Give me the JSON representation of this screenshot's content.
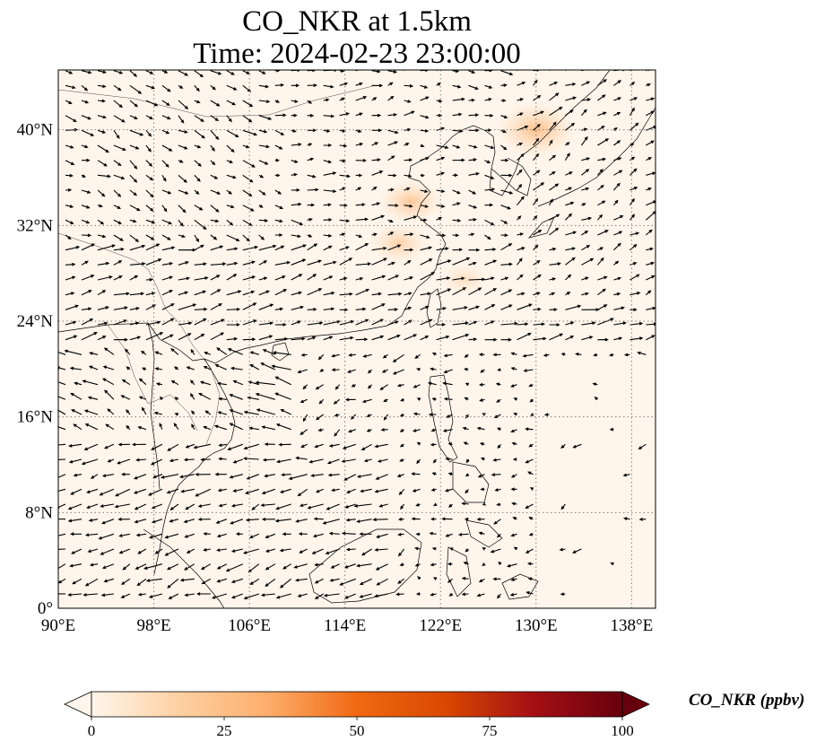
{
  "title": {
    "line1": "CO_NKR at 1.5km",
    "line2": "Time: 2024-02-23 23:00:00"
  },
  "map": {
    "projection": "PlateCarree",
    "lon_range": [
      90,
      140
    ],
    "lat_range": [
      0,
      45
    ],
    "gridlines": "dotted gray",
    "lon_ticks": [
      {
        "value": 90,
        "label": "90°E"
      },
      {
        "value": 98,
        "label": "98°E"
      },
      {
        "value": 106,
        "label": "106°E"
      },
      {
        "value": 114,
        "label": "114°E"
      },
      {
        "value": 122,
        "label": "122°E"
      },
      {
        "value": 130,
        "label": "130°E"
      },
      {
        "value": 138,
        "label": "138°E"
      }
    ],
    "lat_ticks": [
      {
        "value": 0,
        "label": "0°"
      },
      {
        "value": 8,
        "label": "8°N"
      },
      {
        "value": 16,
        "label": "16°N"
      },
      {
        "value": 24,
        "label": "24°N"
      },
      {
        "value": 32,
        "label": "32°N"
      },
      {
        "value": 40,
        "label": "40°N"
      }
    ],
    "field": "CO_NKR",
    "overlay": "wind vectors (black arrows)",
    "background_color": "#fff5eb",
    "concentration_patches": [
      {
        "lon": 119.5,
        "lat": 34.0,
        "value": 12
      },
      {
        "lon": 118.5,
        "lat": 30.5,
        "value": 10
      },
      {
        "lon": 130.0,
        "lat": 40.0,
        "value": 18
      },
      {
        "lon": 124.0,
        "lat": 27.5,
        "value": 6
      }
    ]
  },
  "colorbar": {
    "label": "CO_NKR (ppbv)",
    "cmap": "OrRd",
    "extend": "both",
    "range": [
      0,
      100
    ],
    "colors": [
      "#fff5eb",
      "#fdd0a2",
      "#fdae6b",
      "#f16913",
      "#d94801",
      "#a50f15",
      "#67000d"
    ],
    "ticks": [
      {
        "value": 0,
        "label": "0"
      },
      {
        "value": 25,
        "label": "25"
      },
      {
        "value": 50,
        "label": "50"
      },
      {
        "value": 75,
        "label": "75"
      },
      {
        "value": 100,
        "label": "100"
      }
    ]
  }
}
